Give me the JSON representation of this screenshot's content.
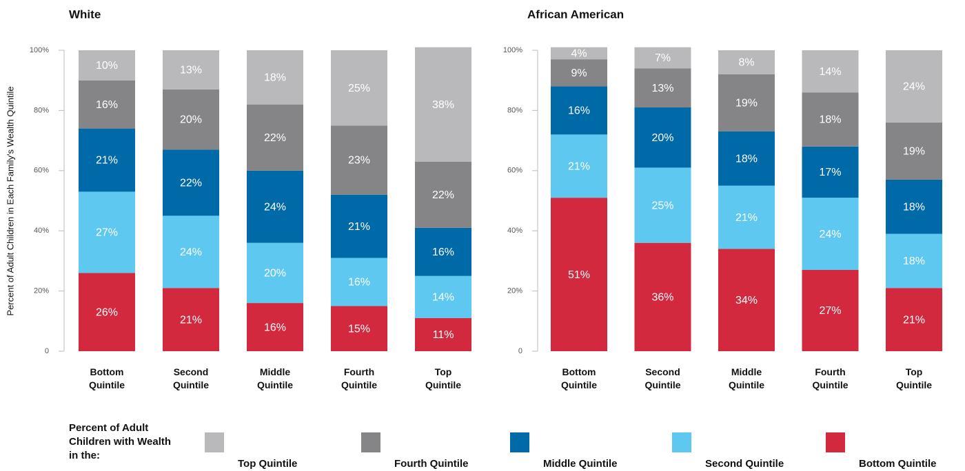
{
  "chart_data": [
    {
      "type": "bar",
      "stacked": true,
      "title": "White",
      "ylabel": "Percent of Adult Children in Each Family's Wealth Quintile",
      "categories": [
        "Bottom Quintile",
        "Second Quintile",
        "Middle Quintile",
        "Fourth Quintile",
        "Top Quintile"
      ],
      "ylim": [
        0,
        100
      ],
      "yticks": [
        0,
        {
          "value": 20,
          "label": "20%"
        },
        {
          "value": 40,
          "label": "40%"
        },
        {
          "value": 60,
          "label": "60%"
        },
        {
          "value": 80,
          "label": "80%"
        },
        {
          "value": 100,
          "label": "100%"
        }
      ],
      "series": [
        {
          "name": "Top Quintile",
          "color": "#b9b9bb",
          "values": [
            10,
            13,
            18,
            25,
            38
          ],
          "value_labels": [
            "10%",
            "13%",
            "18%",
            "25%",
            "38%"
          ]
        },
        {
          "name": "Fourth Quintile",
          "color": "#858587",
          "values": [
            16,
            20,
            22,
            23,
            22
          ],
          "value_labels": [
            "16%",
            "20%",
            "22%",
            "23%",
            "22%"
          ]
        },
        {
          "name": "Middle Quintile",
          "color": "#0069a7",
          "values": [
            21,
            22,
            24,
            21,
            16
          ],
          "value_labels": [
            "21%",
            "22%",
            "24%",
            "21%",
            "16%"
          ]
        },
        {
          "name": "Second Quintile",
          "color": "#5ec8f0",
          "values": [
            27,
            24,
            20,
            16,
            14
          ],
          "value_labels": [
            "27%",
            "24%",
            "20%",
            "16%",
            "14%"
          ]
        },
        {
          "name": "Bottom Quintile",
          "color": "#d2293f",
          "values": [
            26,
            21,
            16,
            15,
            11
          ],
          "value_labels": [
            "26%",
            "21%",
            "16%",
            "15%",
            "11%"
          ]
        }
      ]
    },
    {
      "type": "bar",
      "stacked": true,
      "title": "African American",
      "categories": [
        "Bottom Quintile",
        "Second Quintile",
        "Middle Quintile",
        "Fourth Quintile",
        "Top Quintile"
      ],
      "ylim": [
        0,
        100
      ],
      "yticks": [
        0,
        {
          "value": 20,
          "label": "20%"
        },
        {
          "value": 40,
          "label": "40%"
        },
        {
          "value": 60,
          "label": "60%"
        },
        {
          "value": 80,
          "label": "80%"
        },
        {
          "value": 100,
          "label": "100%"
        }
      ],
      "series": [
        {
          "name": "Top Quintile",
          "color": "#b9b9bb",
          "values": [
            4,
            7,
            8,
            14,
            24
          ],
          "value_labels": [
            "4%",
            "7%",
            "8%",
            "14%",
            "24%"
          ]
        },
        {
          "name": "Fourth Quintile",
          "color": "#858587",
          "values": [
            9,
            13,
            19,
            18,
            19
          ],
          "value_labels": [
            "9%",
            "13%",
            "19%",
            "18%",
            "19%"
          ]
        },
        {
          "name": "Middle Quintile",
          "color": "#0069a7",
          "values": [
            16,
            20,
            18,
            17,
            18
          ],
          "value_labels": [
            "16%",
            "20%",
            "18%",
            "17%",
            "18%"
          ]
        },
        {
          "name": "Second Quintile",
          "color": "#5ec8f0",
          "values": [
            21,
            25,
            21,
            24,
            18
          ],
          "value_labels": [
            "21%",
            "25%",
            "21%",
            "24%",
            "18%"
          ]
        },
        {
          "name": "Bottom Quintile",
          "color": "#d2293f",
          "values": [
            51,
            36,
            34,
            27,
            21
          ],
          "value_labels": [
            "51%",
            "36%",
            "34%",
            "27%",
            "21%"
          ]
        }
      ]
    }
  ],
  "legend": {
    "title": "Percent of Adult Children with Wealth in the:"
  }
}
